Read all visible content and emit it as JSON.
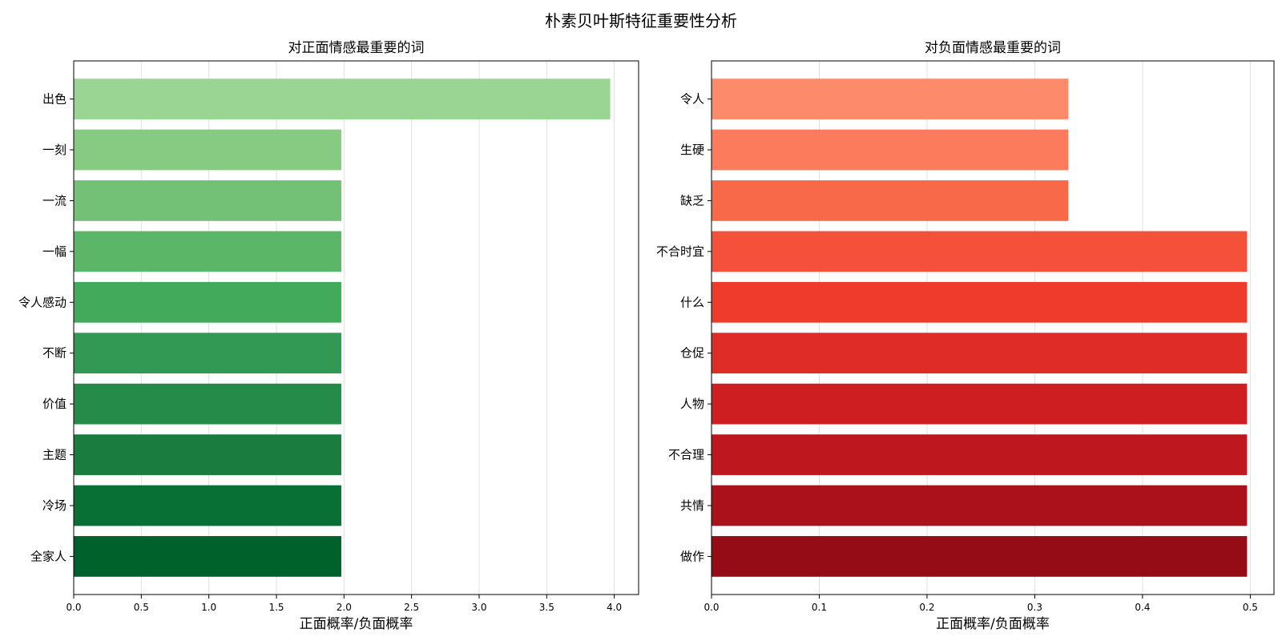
{
  "figure_title": "朴素贝叶斯特征重要性分析",
  "chart_data": [
    {
      "type": "bar",
      "orientation": "horizontal",
      "title": "对正面情感最重要的词",
      "xlabel": "正面概率/负面概率",
      "ylabel": "",
      "xlim": [
        0,
        4.18
      ],
      "xticks": [
        0.0,
        0.5,
        1.0,
        1.5,
        2.0,
        2.5,
        3.0,
        3.5,
        4.0
      ],
      "xtick_labels": [
        "0.0",
        "0.5",
        "1.0",
        "1.5",
        "2.0",
        "2.5",
        "3.0",
        "3.5",
        "4.0"
      ],
      "grid": "x",
      "categories": [
        "出色",
        "一刻",
        "一流",
        "一幅",
        "令人感动",
        "不断",
        "价值",
        "主题",
        "冷场",
        "全家人"
      ],
      "values": [
        3.97,
        1.98,
        1.98,
        1.98,
        1.98,
        1.98,
        1.98,
        1.98,
        1.98,
        1.98
      ],
      "colors": [
        "#9ad594",
        "#86cb81",
        "#72c176",
        "#5cb668",
        "#42aa5b",
        "#319953",
        "#258b48",
        "#1a7d3f",
        "#087034",
        "#00612a"
      ]
    },
    {
      "type": "bar",
      "orientation": "horizontal",
      "title": "对负面情感最重要的词",
      "xlabel": "正面概率/负面概率",
      "ylabel": "",
      "xlim": [
        0,
        0.522
      ],
      "xticks": [
        0.0,
        0.1,
        0.2,
        0.3,
        0.4,
        0.5
      ],
      "xtick_labels": [
        "0.0",
        "0.1",
        "0.2",
        "0.3",
        "0.4",
        "0.5"
      ],
      "grid": "x",
      "categories": [
        "令人",
        "生硬",
        "缺乏",
        "不合时宜",
        "什么",
        "仓促",
        "人物",
        "不合理",
        "共情",
        "做作"
      ],
      "values": [
        0.331,
        0.331,
        0.331,
        0.497,
        0.497,
        0.497,
        0.497,
        0.497,
        0.497,
        0.497
      ],
      "colors": [
        "#fc8a6b",
        "#fb7b5c",
        "#f8694a",
        "#f4503a",
        "#ee3b2c",
        "#df2c26",
        "#cf1e21",
        "#be171e",
        "#aa111a",
        "#950b16"
      ]
    }
  ]
}
